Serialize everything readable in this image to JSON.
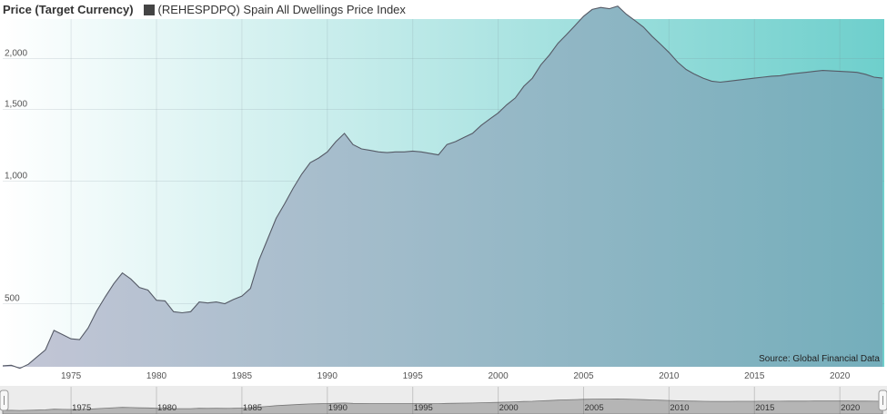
{
  "legend": {
    "title": "Price (Target Currency)",
    "series_label": "(REHESPDPQ) Spain All Dwellings Price Index",
    "swatch_color": "#444444"
  },
  "source": "Source: Global Financial Data",
  "colors": {
    "line": "#555a66",
    "bg_left": "#ffffff",
    "bg_right": "#6ecfcc",
    "area_left": "#c4c6d6",
    "area_right": "#74aebb",
    "navigator_fill": "#888888"
  },
  "chart_data": {
    "type": "area",
    "title": "",
    "xlabel": "",
    "ylabel": "Price (Target Currency)",
    "yscale": "log",
    "grid": true,
    "legend_position": "top-left",
    "xlim": [
      1971.0,
      2022.6
    ],
    "ylim": [
      350,
      2500
    ],
    "x_ticks": [
      1975,
      1980,
      1985,
      1990,
      1995,
      2000,
      2005,
      2010,
      2015,
      2020
    ],
    "y_ticks": [
      500,
      1000,
      1500,
      2000
    ],
    "y_tick_labels": [
      "500",
      "1,000",
      "1,500",
      "2,000"
    ],
    "series": [
      {
        "name": "(REHESPDPQ) Spain All Dwellings Price Index",
        "x": [
          1971.0,
          1971.5,
          1972.0,
          1972.5,
          1973.0,
          1973.5,
          1974.0,
          1974.5,
          1975.0,
          1975.5,
          1976.0,
          1976.5,
          1977.0,
          1977.5,
          1978.0,
          1978.5,
          1979.0,
          1979.5,
          1980.0,
          1980.5,
          1981.0,
          1981.5,
          1982.0,
          1982.5,
          1983.0,
          1983.5,
          1984.0,
          1984.5,
          1985.0,
          1985.5,
          1986.0,
          1986.5,
          1987.0,
          1987.5,
          1988.0,
          1988.5,
          1989.0,
          1989.5,
          1990.0,
          1990.5,
          1991.0,
          1991.5,
          1992.0,
          1992.5,
          1993.0,
          1993.5,
          1994.0,
          1994.5,
          1995.0,
          1995.5,
          1996.0,
          1996.5,
          1997.0,
          1997.5,
          1998.0,
          1998.5,
          1999.0,
          1999.5,
          2000.0,
          2000.5,
          2001.0,
          2001.5,
          2002.0,
          2002.5,
          2003.0,
          2003.5,
          2004.0,
          2004.5,
          2005.0,
          2005.5,
          2006.0,
          2006.5,
          2007.0,
          2007.5,
          2008.0,
          2008.5,
          2009.0,
          2009.5,
          2010.0,
          2010.5,
          2011.0,
          2011.5,
          2012.0,
          2012.5,
          2013.0,
          2013.5,
          2014.0,
          2014.5,
          2015.0,
          2015.5,
          2016.0,
          2016.5,
          2017.0,
          2017.5,
          2018.0,
          2018.5,
          2019.0,
          2019.5,
          2020.0,
          2020.5,
          2021.0,
          2021.5,
          2022.0,
          2022.5
        ],
        "values": [
          352,
          353,
          347,
          355,
          370,
          385,
          430,
          420,
          410,
          408,
          436,
          480,
          520,
          560,
          595,
          575,
          548,
          540,
          510,
          508,
          478,
          475,
          478,
          505,
          502,
          505,
          500,
          512,
          522,
          545,
          640,
          720,
          810,
          880,
          960,
          1040,
          1110,
          1140,
          1180,
          1250,
          1310,
          1230,
          1200,
          1190,
          1180,
          1175,
          1180,
          1180,
          1185,
          1180,
          1170,
          1160,
          1230,
          1250,
          1280,
          1310,
          1370,
          1420,
          1470,
          1540,
          1600,
          1710,
          1790,
          1930,
          2040,
          2180,
          2290,
          2410,
          2540,
          2640,
          2670,
          2650,
          2690,
          2570,
          2480,
          2390,
          2270,
          2170,
          2070,
          1960,
          1880,
          1830,
          1790,
          1760,
          1750,
          1760,
          1770,
          1780,
          1790,
          1800,
          1810,
          1815,
          1830,
          1840,
          1850,
          1860,
          1870,
          1865,
          1860,
          1855,
          1850,
          1830,
          1800,
          1790
        ]
      }
    ]
  }
}
